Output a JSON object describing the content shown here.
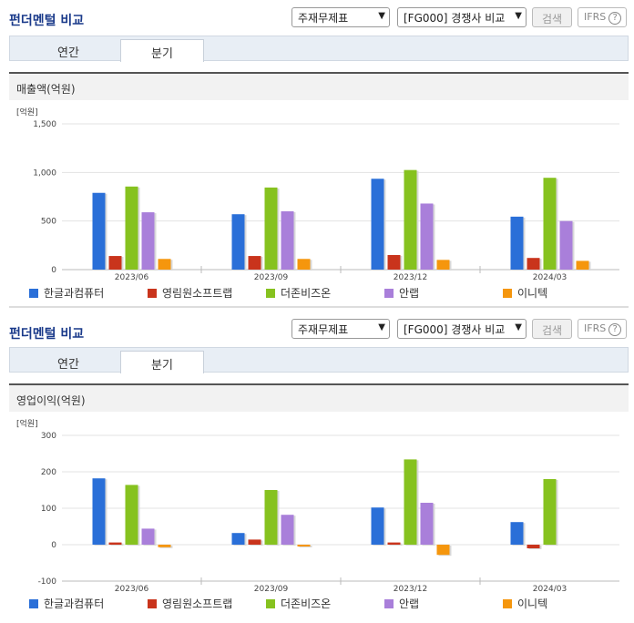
{
  "panels": [
    {
      "title": "펀더멘털 비교",
      "select1": "주재무제표",
      "select2": "[FG000] 경쟁사 비교",
      "search_label": "검색",
      "ifrs_label": "IFRS",
      "tabs": [
        "연간",
        "분기"
      ],
      "active_tab": "분기",
      "section_label": "매출액(억원)"
    },
    {
      "title": "펀더멘털 비교",
      "select1": "주재무제표",
      "select2": "[FG000] 경쟁사 비교",
      "search_label": "검색",
      "ifrs_label": "IFRS",
      "tabs": [
        "연간",
        "분기"
      ],
      "active_tab": "분기",
      "section_label": "영업이익(억원)"
    }
  ],
  "colors": {
    "한글과컴퓨터": "#2a6fd8",
    "영림원소프트랩": "#c9341c",
    "더존비즈온": "#86c21f",
    "안랩": "#a97fda",
    "이니텍": "#f5960d"
  },
  "chart_data": [
    {
      "type": "bar",
      "unit_label": "[억원]",
      "categories": [
        "2023/06",
        "2023/09",
        "2023/12",
        "2024/03"
      ],
      "yticks": [
        "1,500",
        "1,000",
        "500",
        "0"
      ],
      "ylim": [
        0,
        1500
      ],
      "series": [
        {
          "name": "한글과컴퓨터",
          "values": [
            790,
            570,
            935,
            545
          ]
        },
        {
          "name": "영림원소프트랩",
          "values": [
            140,
            140,
            150,
            120
          ]
        },
        {
          "name": "더존비즈온",
          "values": [
            855,
            845,
            1025,
            945
          ]
        },
        {
          "name": "안랩",
          "values": [
            590,
            600,
            680,
            500
          ]
        },
        {
          "name": "이니텍",
          "values": [
            110,
            110,
            100,
            90
          ]
        }
      ],
      "legend": "bottom"
    },
    {
      "type": "bar",
      "unit_label": "[억원]",
      "categories": [
        "2023/06",
        "2023/09",
        "2023/12",
        "2024/03"
      ],
      "yticks": [
        "300",
        "200",
        "100",
        "0",
        "-100"
      ],
      "ylim": [
        -100,
        300
      ],
      "series": [
        {
          "name": "한글과컴퓨터",
          "values": [
            182,
            32,
            102,
            62
          ]
        },
        {
          "name": "영림원소프트랩",
          "values": [
            6,
            14,
            6,
            -10
          ]
        },
        {
          "name": "더존비즈온",
          "values": [
            164,
            150,
            234,
            180
          ]
        },
        {
          "name": "안랩",
          "values": [
            44,
            82,
            115,
            null
          ]
        },
        {
          "name": "이니텍",
          "values": [
            -7,
            -5,
            -28,
            null
          ]
        }
      ],
      "legend": "bottom"
    }
  ]
}
